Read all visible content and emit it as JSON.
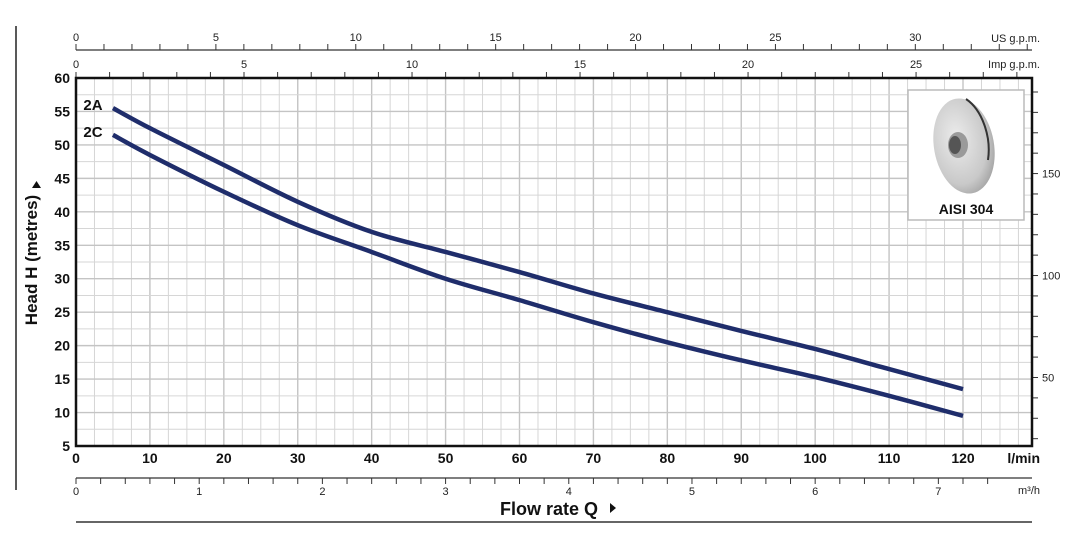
{
  "chart_data": {
    "type": "line",
    "title": "",
    "xlabel": "Flow rate Q",
    "ylabel": "Head H (metres)",
    "x_unit": "l/min",
    "xlim": [
      0,
      120
    ],
    "ylim": [
      5,
      60
    ],
    "grid": true,
    "x_ticks": [
      0,
      10,
      20,
      30,
      40,
      50,
      60,
      70,
      80,
      90,
      100,
      110,
      120
    ],
    "y_ticks": [
      5,
      10,
      15,
      20,
      25,
      30,
      35,
      40,
      45,
      50,
      55,
      60
    ],
    "secondary_axes": {
      "top_us_gpm": {
        "label": "US g.p.m.",
        "ticks": [
          0,
          5,
          10,
          15,
          20,
          25,
          30
        ]
      },
      "top_imp_gpm": {
        "label": "Imp g.p.m.",
        "ticks": [
          0,
          5,
          10,
          15,
          20,
          25
        ]
      },
      "bottom_m3h": {
        "label": "m³/h",
        "ticks": [
          0,
          1,
          2,
          3,
          4,
          5,
          6,
          7
        ]
      },
      "right_feet": {
        "label": "",
        "ticks": [
          50,
          100,
          150
        ]
      }
    },
    "series": [
      {
        "name": "2A",
        "color": "#1f2d6b",
        "x": [
          5,
          10,
          20,
          30,
          40,
          50,
          60,
          70,
          80,
          90,
          100,
          110,
          120
        ],
        "y": [
          55.5,
          52.5,
          47.0,
          41.5,
          37.0,
          34.0,
          31.0,
          27.8,
          25.0,
          22.2,
          19.5,
          16.5,
          13.5
        ]
      },
      {
        "name": "2C",
        "color": "#1f2d6b",
        "x": [
          5,
          10,
          20,
          30,
          40,
          50,
          60,
          70,
          80,
          90,
          100,
          110,
          120
        ],
        "y": [
          51.5,
          48.5,
          43.0,
          38.0,
          34.0,
          30.0,
          26.8,
          23.5,
          20.5,
          17.8,
          15.3,
          12.5,
          9.5
        ]
      }
    ],
    "annotations": [
      "2A",
      "2C"
    ],
    "inset": {
      "caption": "AISI 304",
      "subject": "impeller-image"
    }
  },
  "labels": {
    "x_unit": "l/min",
    "x_title": "Flow rate Q",
    "y_title": "Head H (metres)",
    "us_gpm": "US g.p.m.",
    "imp_gpm": "Imp g.p.m.",
    "m3h": "m³/h",
    "inset_caption": "AISI 304"
  }
}
